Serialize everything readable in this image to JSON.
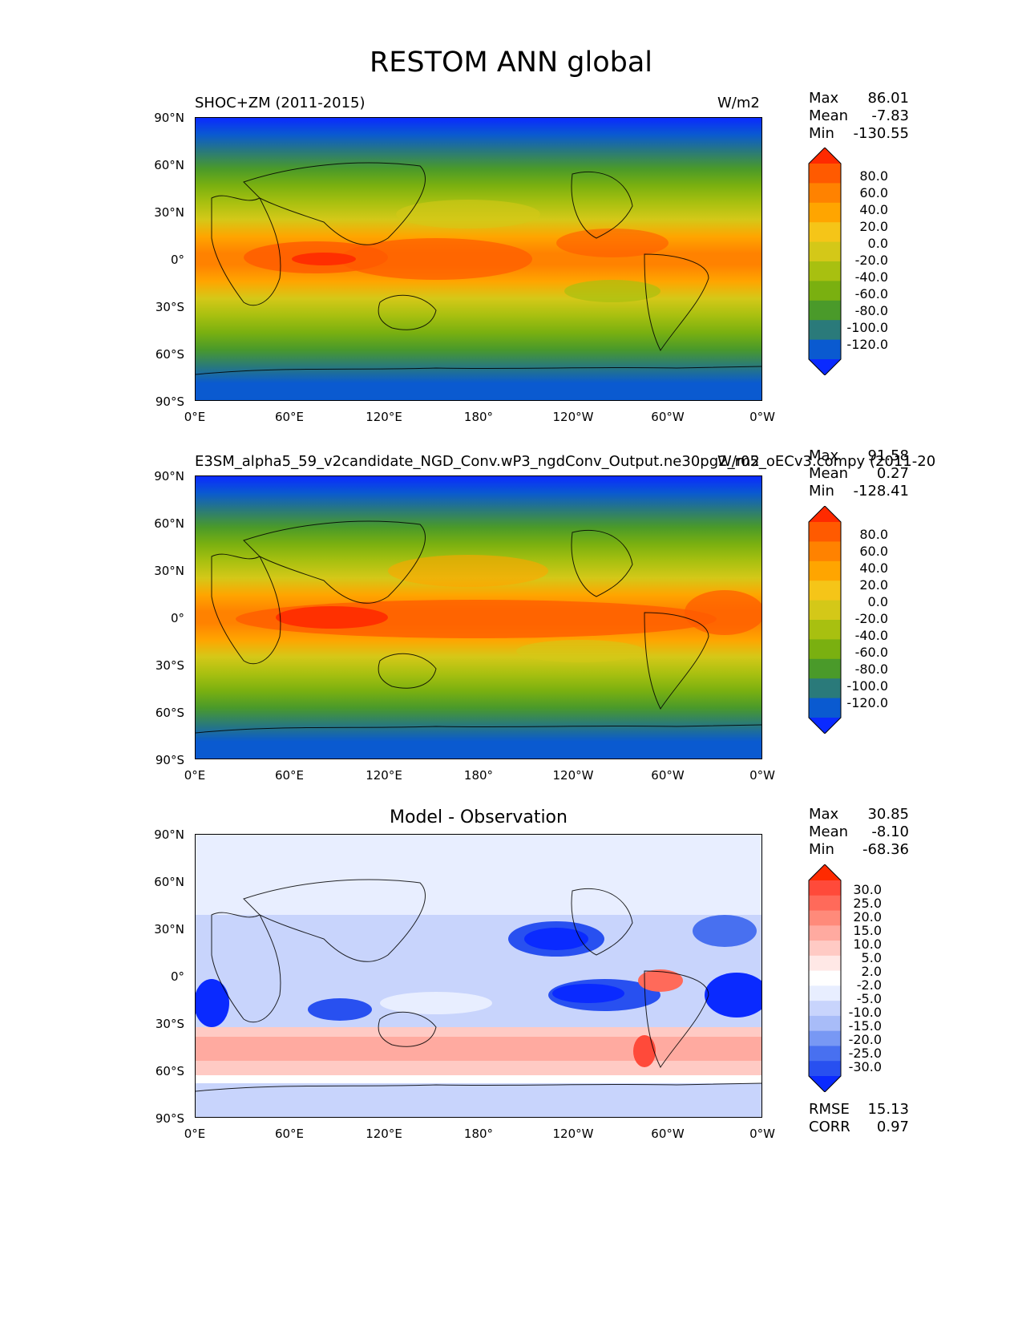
{
  "title": "RESTOM ANN global",
  "panels": [
    {
      "left_title": "SHOC+ZM (2011-2015)",
      "right_title": "W/m2",
      "stats": [
        {
          "label": "Max",
          "value": "86.01"
        },
        {
          "label": "Mean",
          "value": "-7.83"
        },
        {
          "label": "Min",
          "value": "-130.55"
        }
      ]
    },
    {
      "left_title": "E3SM_alpha5_59_v2candidate_NGD_Conv.wP3_ngdConv_Output.ne30pg2_r05_oECv3.compy (2011-20",
      "right_title": "W/m2",
      "stats": [
        {
          "label": "Max",
          "value": "91.58"
        },
        {
          "label": "Mean",
          "value": "0.27"
        },
        {
          "label": "Min",
          "value": "-128.41"
        }
      ]
    },
    {
      "center_title": "Model - Observation",
      "stats": [
        {
          "label": "Max",
          "value": "30.85"
        },
        {
          "label": "Mean",
          "value": "-8.10"
        },
        {
          "label": "Min",
          "value": "-68.36"
        }
      ],
      "metrics": [
        {
          "label": "RMSE",
          "value": "15.13"
        },
        {
          "label": "CORR",
          "value": "0.97"
        }
      ]
    }
  ],
  "axes": {
    "lat_ticks": [
      "90°N",
      "60°N",
      "30°N",
      "0°",
      "30°S",
      "60°S",
      "90°S"
    ],
    "lon_ticks": [
      "0°E",
      "60°E",
      "120°E",
      "180°",
      "120°W",
      "60°W",
      "0°W"
    ]
  },
  "colorbars": {
    "field": {
      "labels": [
        "80.0",
        "60.0",
        "40.0",
        "20.0",
        "0.0",
        "-20.0",
        "-40.0",
        "-60.0",
        "-80.0",
        "-100.0",
        "-120.0"
      ],
      "colors": [
        "#ff2a00",
        "#ff5a00",
        "#ff8200",
        "#ffa500",
        "#f5c518",
        "#d4c818",
        "#a8c010",
        "#7ab010",
        "#4a9a2a",
        "#2a7a7a",
        "#0a5ad0",
        "#0a2aff"
      ]
    },
    "diff": {
      "labels": [
        "30.0",
        "25.0",
        "20.0",
        "15.0",
        "10.0",
        "5.0",
        "2.0",
        "-2.0",
        "-5.0",
        "-10.0",
        "-15.0",
        "-20.0",
        "-25.0",
        "-30.0"
      ],
      "colors": [
        "#ff2a00",
        "#ff4a3a",
        "#ff6a5a",
        "#ff8a7a",
        "#ffaaa0",
        "#ffcac4",
        "#ffe8e6",
        "#ffffff",
        "#e8eeff",
        "#c8d4fc",
        "#a8bcf8",
        "#7898f4",
        "#4870f0",
        "#2850f0",
        "#0a2aff"
      ]
    }
  },
  "chart_data": [
    {
      "type": "heatmap",
      "title": "SHOC+ZM (2011-2015)",
      "units": "W/m2",
      "lat_range": [
        -90,
        90
      ],
      "lon_range": [
        0,
        360
      ],
      "max": 86.01,
      "mean": -7.83,
      "min": -130.55,
      "levels": [
        -120,
        -100,
        -80,
        -60,
        -40,
        -20,
        0,
        20,
        40,
        60,
        80
      ]
    },
    {
      "type": "heatmap",
      "title": "E3SM_alpha5_59_v2candidate_NGD_Conv.wP3_ngdConv_Output.ne30pg2_r05_oECv3.compy (2011-20",
      "units": "W/m2",
      "lat_range": [
        -90,
        90
      ],
      "lon_range": [
        0,
        360
      ],
      "max": 91.58,
      "mean": 0.27,
      "min": -128.41,
      "levels": [
        -120,
        -100,
        -80,
        -60,
        -40,
        -20,
        0,
        20,
        40,
        60,
        80
      ]
    },
    {
      "type": "heatmap",
      "title": "Model - Observation",
      "lat_range": [
        -90,
        90
      ],
      "lon_range": [
        0,
        360
      ],
      "max": 30.85,
      "mean": -8.1,
      "min": -68.36,
      "rmse": 15.13,
      "corr": 0.97,
      "levels": [
        -30,
        -25,
        -20,
        -15,
        -10,
        -5,
        -2,
        2,
        5,
        10,
        15,
        20,
        25,
        30
      ]
    }
  ]
}
